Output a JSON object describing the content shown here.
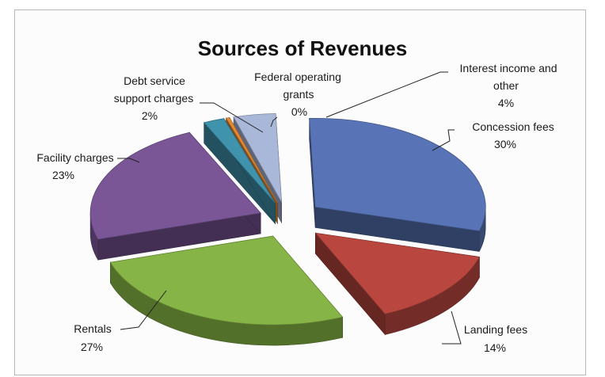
{
  "chart_data": {
    "type": "pie",
    "title": "Sources of Revenues",
    "style": "3d-exploded",
    "labels": [
      {
        "name_lines": [
          "Concession fees"
        ],
        "value_text": "30%"
      },
      {
        "name_lines": [
          "Landing fees"
        ],
        "value_text": "14%"
      },
      {
        "name_lines": [
          "Rentals"
        ],
        "value_text": "27%"
      },
      {
        "name_lines": [
          "Facility charges"
        ],
        "value_text": "23%"
      },
      {
        "name_lines": [
          "Debt service",
          "support charges"
        ],
        "value_text": "2%"
      },
      {
        "name_lines": [
          "Federal operating",
          "grants"
        ],
        "value_text": "0%"
      },
      {
        "name_lines": [
          "Interest income and",
          "other"
        ],
        "value_text": "4%"
      }
    ],
    "slices": [
      {
        "name": "Concession fees",
        "value": 30,
        "color": "#5874b6"
      },
      {
        "name": "Landing fees",
        "value": 14,
        "color": "#b9473f"
      },
      {
        "name": "Rentals",
        "value": 27,
        "color": "#86b446"
      },
      {
        "name": "Facility charges",
        "value": 23,
        "color": "#7a5697"
      },
      {
        "name": "Debt service support charges",
        "value": 2,
        "color": "#3f93ad"
      },
      {
        "name": "Federal operating grants",
        "value": 0,
        "color": "#e58a32"
      },
      {
        "name": "Interest income and other",
        "value": 4,
        "color": "#a9b7d9"
      }
    ]
  }
}
